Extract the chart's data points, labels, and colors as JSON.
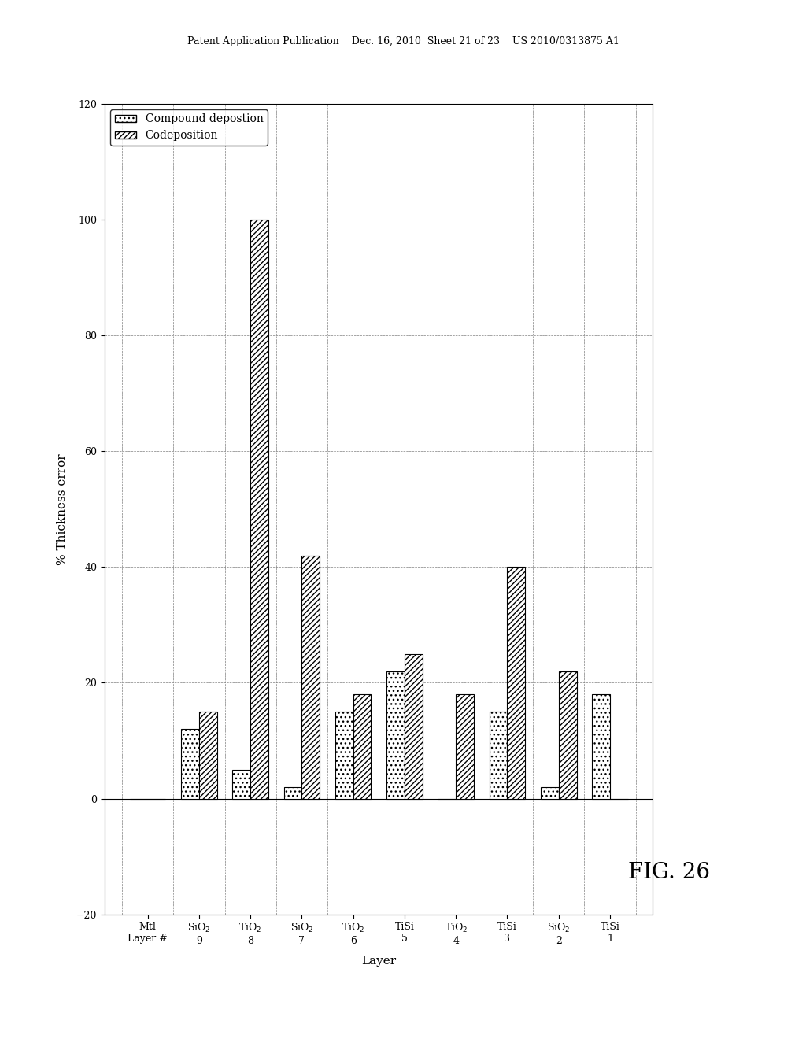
{
  "title": "FIG. 26",
  "xlabel": "Layer",
  "ylabel": "% Thickness error",
  "ylim": [
    -20,
    120
  ],
  "yticks": [
    -20,
    0,
    20,
    40,
    60,
    80,
    100,
    120
  ],
  "groups": [
    "Mtl\nLayer #",
    "SiO$_2$\n9",
    "TiO$_2$\n8",
    "SiO$_2$\n7",
    "TiO$_2$\n6",
    "TiSi\n5",
    "TiO$_2$\n4",
    "TiSi\n3",
    "SiO$_2$\n2",
    "TiSi\n1"
  ],
  "compound_deposition": [
    0,
    12,
    5,
    2,
    15,
    22,
    0,
    15,
    2,
    18
  ],
  "codeposition": [
    0,
    15,
    100,
    42,
    18,
    25,
    18,
    40,
    22,
    0
  ],
  "compound_color": "#c8c8c8",
  "codeposition_color": "#c8c8c8",
  "legend_compound": "Compound depostion",
  "legend_codeposition": "Codeposition",
  "bar_width": 0.35,
  "header_text": "Patent Application Publication    Dec. 16, 2010  Sheet 21 of 23    US 2010/0313875 A1",
  "figure_label": "FIG. 26"
}
